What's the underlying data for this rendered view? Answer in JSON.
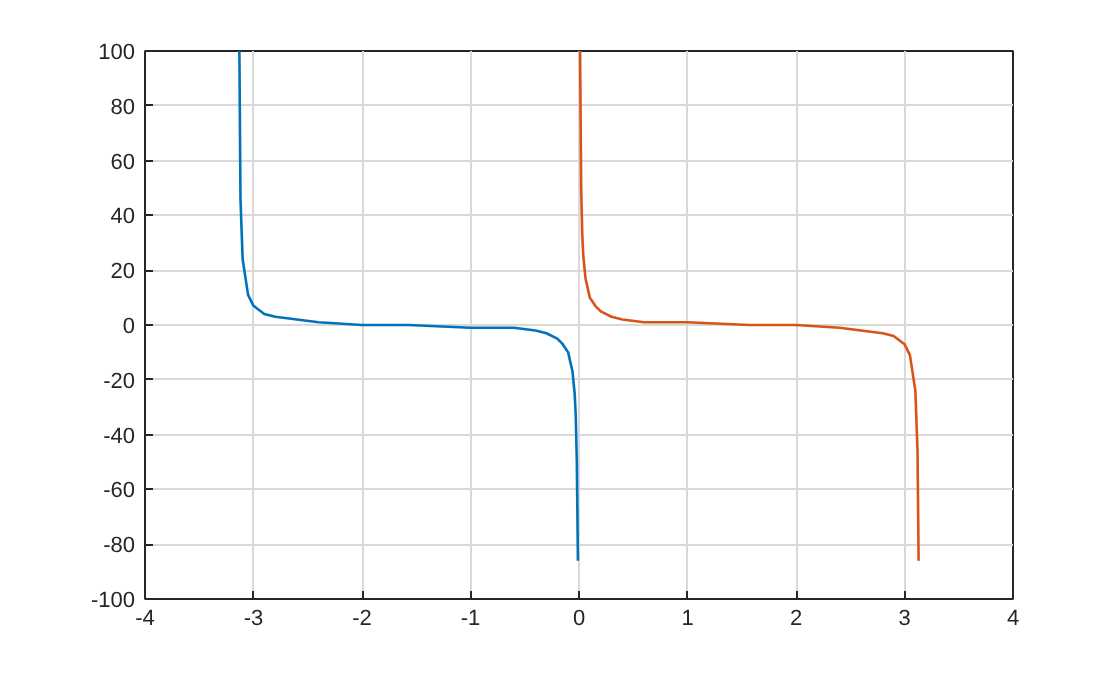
{
  "chart_data": {
    "type": "line",
    "xlim": [
      -4,
      4
    ],
    "ylim": [
      -100,
      100
    ],
    "xticks": [
      -4,
      -3,
      -2,
      -1,
      0,
      1,
      2,
      3,
      4
    ],
    "yticks": [
      -100,
      -80,
      -60,
      -40,
      -20,
      0,
      20,
      40,
      60,
      80,
      100
    ],
    "grid": true,
    "marker": "none",
    "line_style": "solid",
    "series": [
      {
        "color": "#0072bd",
        "x": [
          -3.13,
          -3.12,
          -3.1,
          -3.05,
          -3.0,
          -2.9,
          -2.8,
          -2.6,
          -2.4,
          -2.0,
          -1.57,
          -1.0,
          -0.6,
          -0.4,
          -0.3,
          -0.2,
          -0.15,
          -0.1,
          -0.06,
          -0.04,
          -0.03,
          -0.02,
          -0.01
        ],
        "values": [
          100,
          46,
          24,
          11,
          7,
          4,
          3,
          2,
          1,
          0,
          0,
          -1,
          -1,
          -2,
          -3,
          -5,
          -7,
          -10,
          -17,
          -25,
          -33,
          -50,
          -86
        ]
      },
      {
        "color": "#d95319",
        "x": [
          0.01,
          0.02,
          0.03,
          0.04,
          0.06,
          0.1,
          0.15,
          0.2,
          0.3,
          0.4,
          0.6,
          1.0,
          1.57,
          2.0,
          2.4,
          2.6,
          2.8,
          2.9,
          3.0,
          3.05,
          3.1,
          3.12,
          3.13
        ],
        "values": [
          100,
          50,
          33,
          25,
          17,
          10,
          7,
          5,
          3,
          2,
          1,
          1,
          0,
          0,
          -1,
          -2,
          -3,
          -4,
          -7,
          -11,
          -24,
          -46,
          -86
        ]
      }
    ]
  }
}
